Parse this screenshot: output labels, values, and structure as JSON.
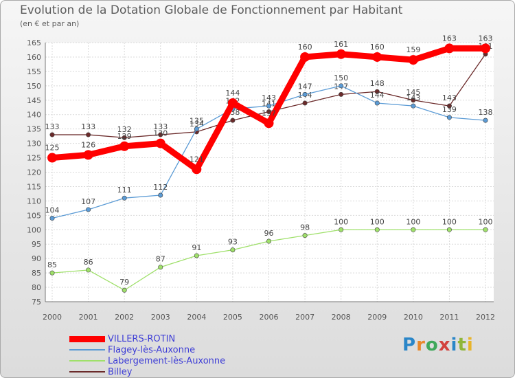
{
  "chart_data": {
    "type": "line",
    "title": "Evolution de la Dotation Globale de Fonctionnement par Habitant",
    "subtitle": "(en € et par an)",
    "x": [
      "2000",
      "2001",
      "2002",
      "2003",
      "2004",
      "2005",
      "2006",
      "2007",
      "2008",
      "2009",
      "2010",
      "2011",
      "2012"
    ],
    "ylim": [
      75,
      165
    ],
    "yticks": [
      75,
      80,
      85,
      90,
      95,
      100,
      105,
      110,
      115,
      120,
      125,
      130,
      135,
      140,
      145,
      150,
      155,
      160,
      165
    ],
    "grid": true,
    "series": [
      {
        "name": "Billey",
        "color": "#6b2a2a",
        "values": [
          133,
          133,
          132,
          133,
          134,
          138,
          141,
          144,
          147,
          148,
          145,
          143,
          161
        ]
      },
      {
        "name": "Flagey-lès-Auxonne",
        "color": "#5b9bd5",
        "values": [
          104,
          107,
          111,
          112,
          135,
          142,
          143,
          147,
          150,
          144,
          143,
          139,
          138
        ]
      },
      {
        "name": "Labergement-lès-Auxonne",
        "color": "#9fe06a",
        "values": [
          85,
          86,
          79,
          87,
          91,
          93,
          96,
          98,
          100,
          100,
          100,
          100,
          100
        ]
      },
      {
        "name": "VILLERS-ROTIN",
        "color": "#ff0000",
        "values": [
          125,
          126,
          129,
          130,
          121,
          144,
          137,
          160,
          161,
          160,
          159,
          163,
          163
        ]
      }
    ],
    "legend": [
      "VILLERS-ROTIN",
      "Flagey-lès-Auxonne",
      "Labergement-lès-Auxonne",
      "Billey"
    ]
  },
  "logo": {
    "letters": [
      "P",
      "r",
      "o",
      "x",
      "i",
      "t",
      "i"
    ]
  }
}
